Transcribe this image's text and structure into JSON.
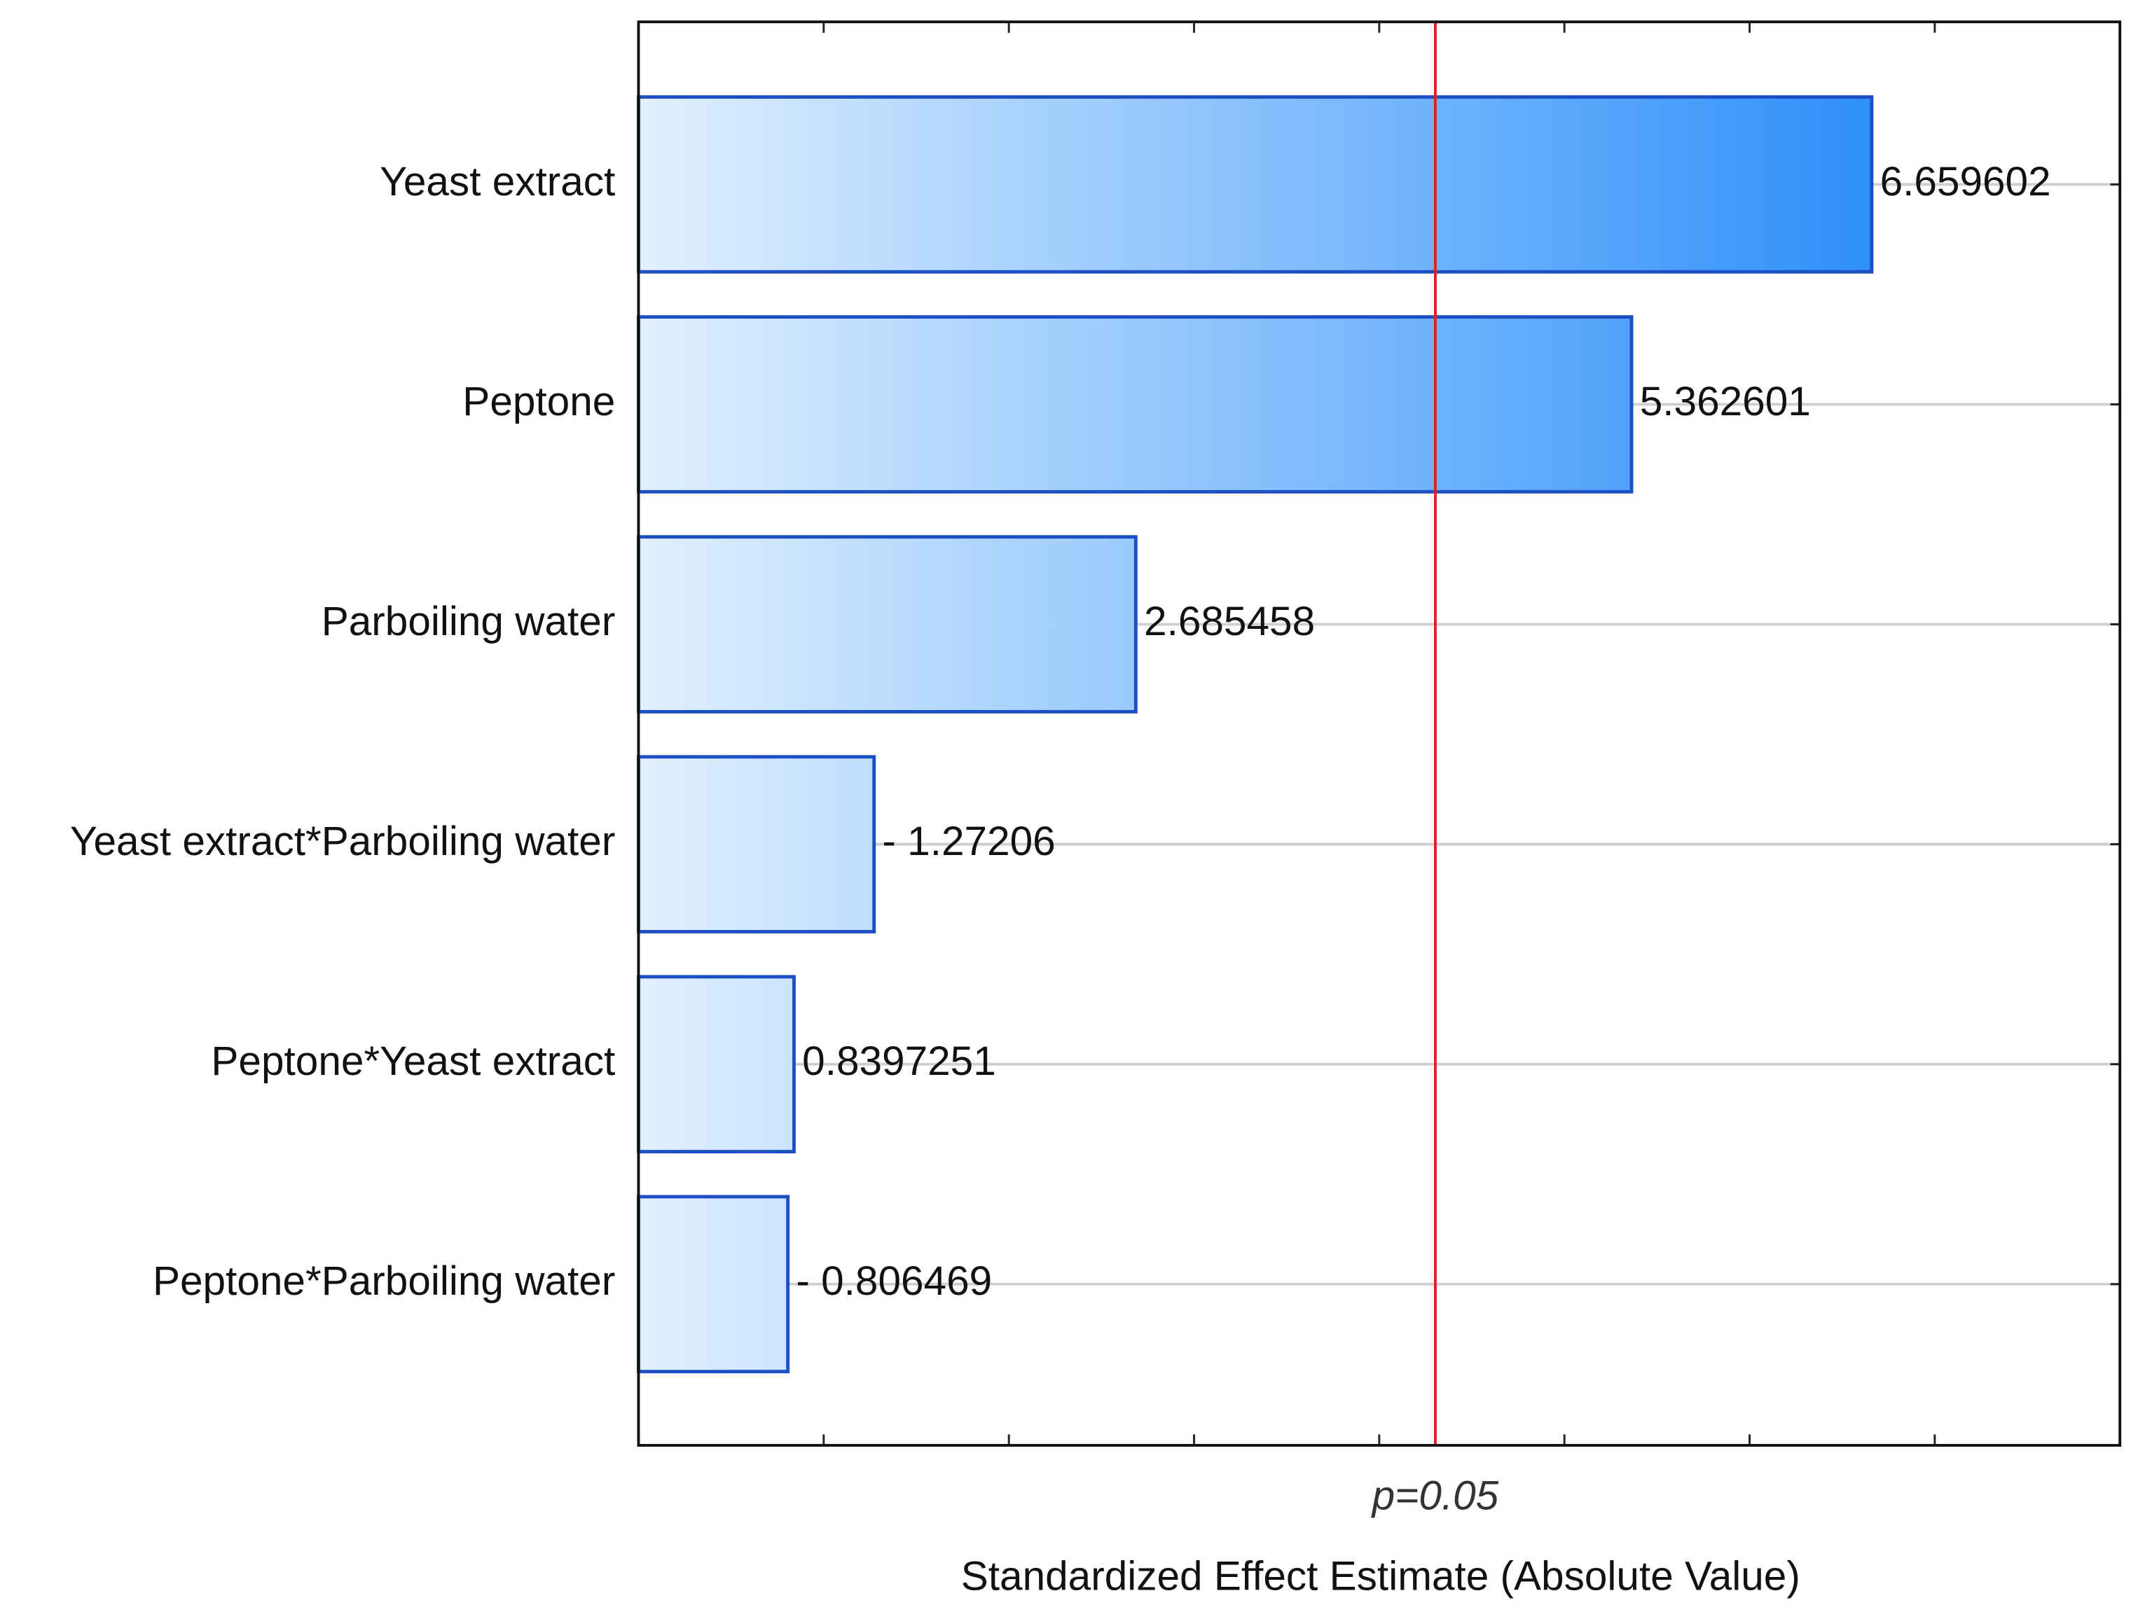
{
  "chart_data": {
    "type": "bar",
    "orientation": "horizontal",
    "categories": [
      "Yeast extract",
      "Peptone",
      "Parboiling water",
      "Yeast extract*Parboiling water",
      "Peptone*Yeast extract",
      "Peptone*Parboiling water"
    ],
    "values": [
      6.659602,
      5.362601,
      2.685458,
      -1.27206,
      0.8397251,
      -0.806469
    ],
    "value_labels": [
      "6.659602",
      "5.362601",
      "2.685458",
      "- 1.27206",
      "0.8397251",
      "- 0.806469"
    ],
    "color": "#2e90fa",
    "xlabel": "Standardized Effect Estimate (Absolute Value)",
    "xlim": [
      0,
      8
    ],
    "xticks": [
      0,
      1,
      2,
      3,
      4,
      5,
      6,
      7,
      8
    ],
    "reference_line": {
      "value": 4.303,
      "label": "p=0.05",
      "color": "#e02020"
    },
    "grid": true
  }
}
